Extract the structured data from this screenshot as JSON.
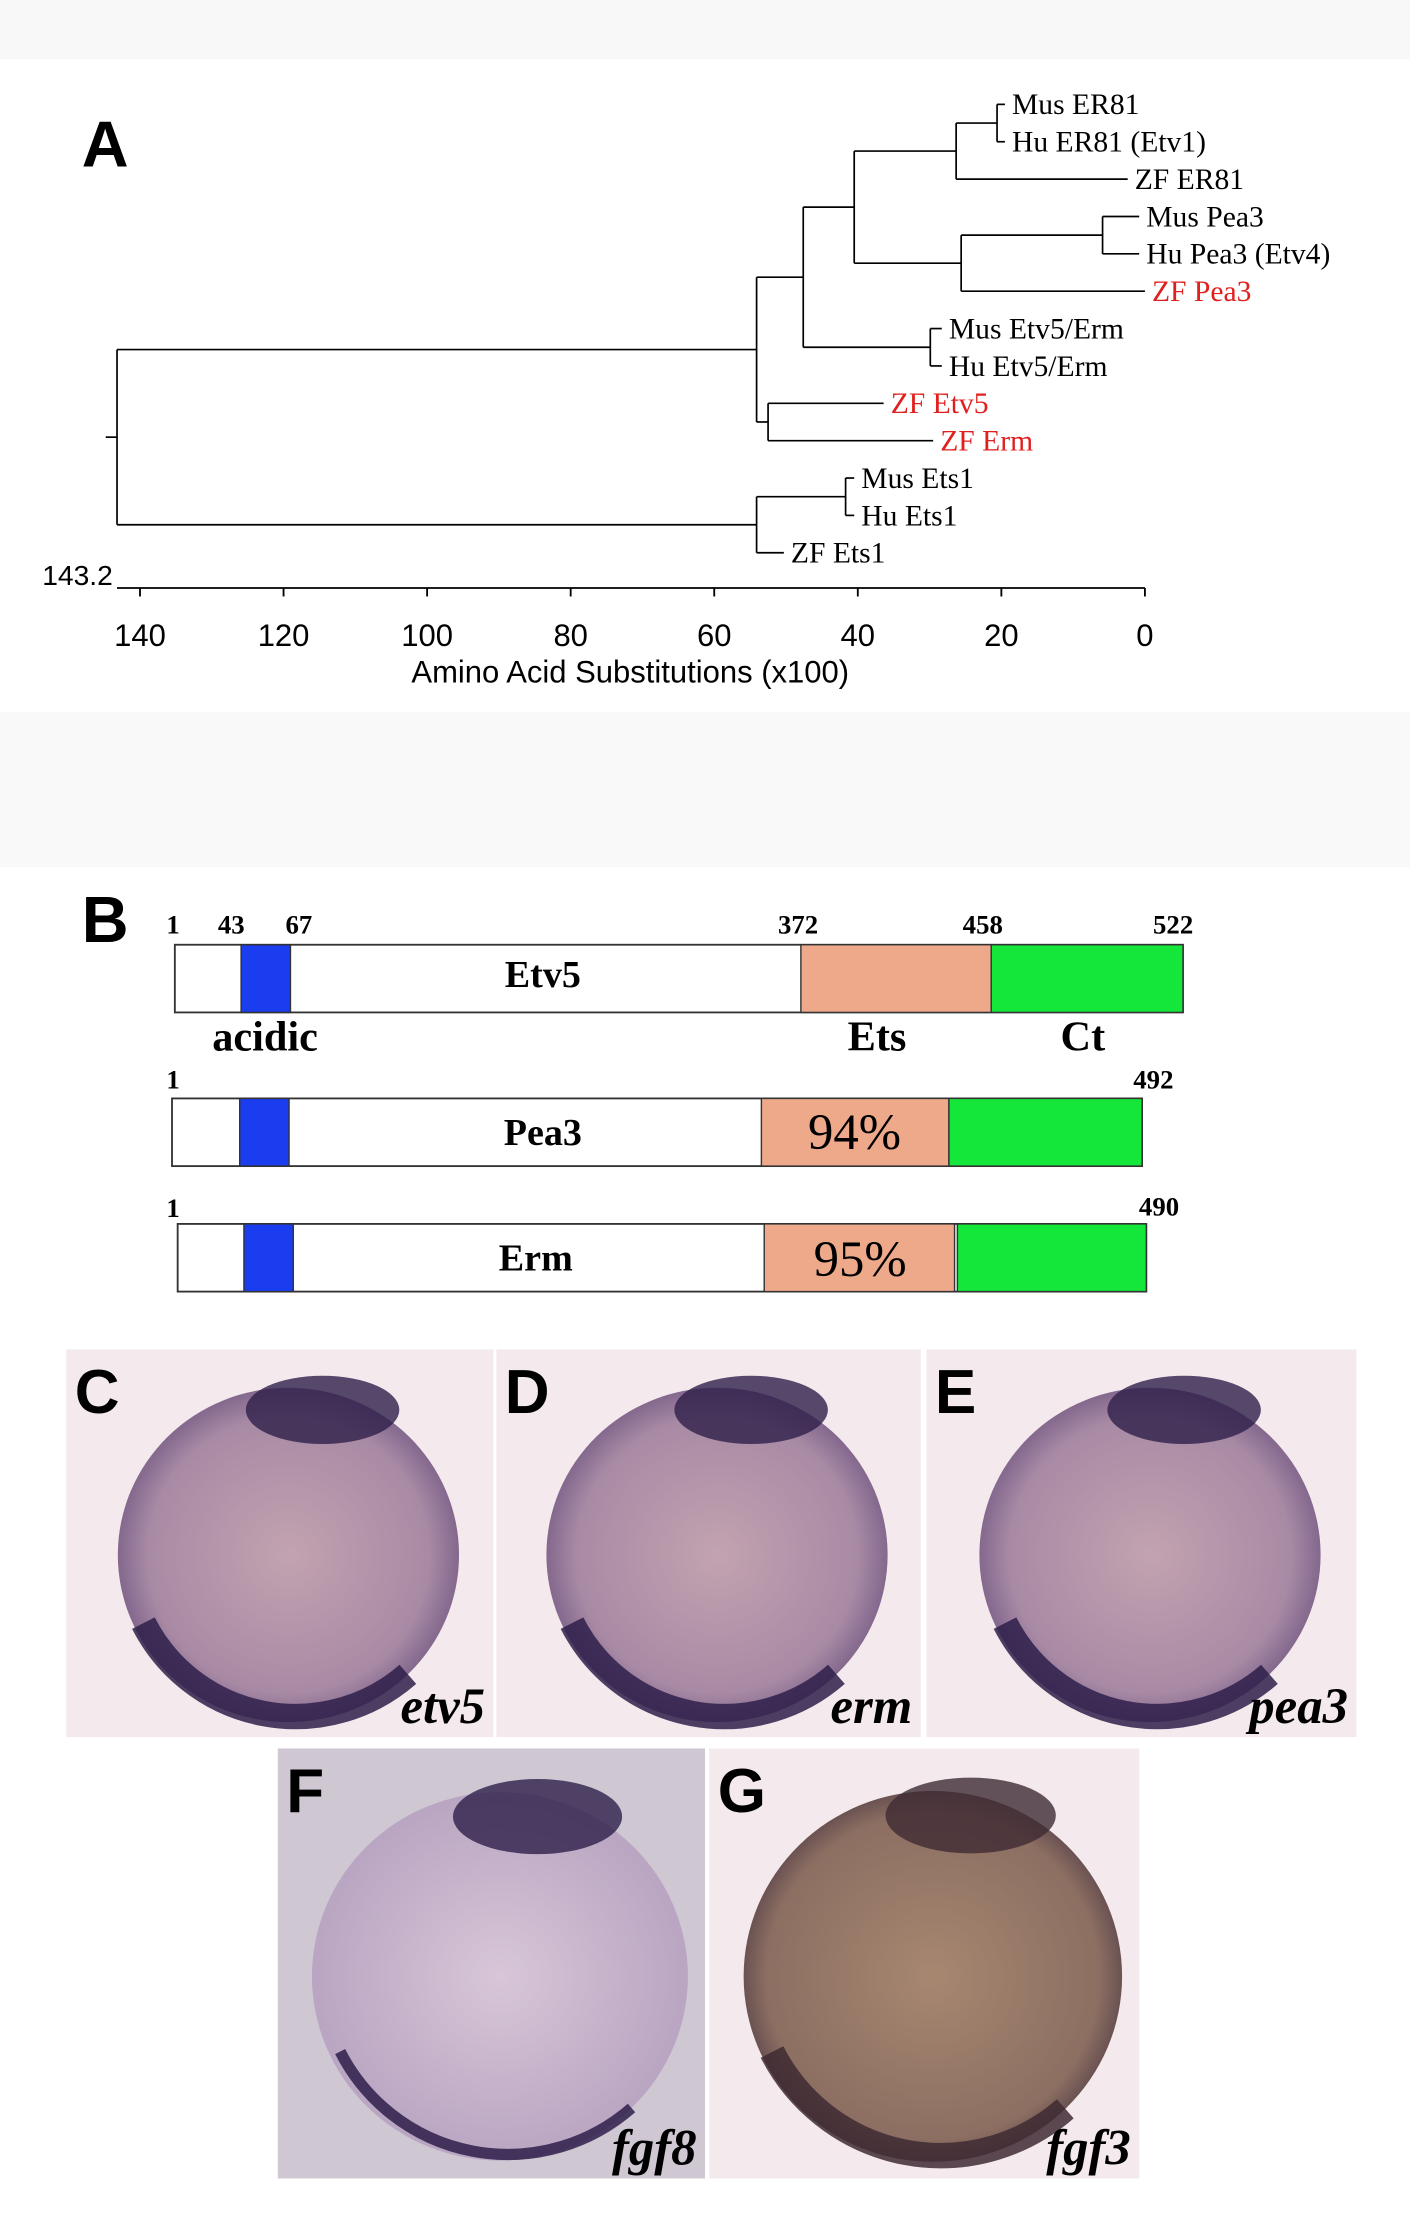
{
  "panel_a": {
    "label": "A",
    "axis_label": "Amino Acid Substitutions (x100)",
    "xlim": [
      143.2,
      0
    ],
    "xticks": [
      140,
      120,
      100,
      80,
      60,
      40,
      20,
      0
    ],
    "tree": {
      "depth": 143.2,
      "children": [
        {
          "depth": 54.1,
          "children": [
            {
              "depth": 47.6,
              "children": [
                {
                  "depth": 40.5,
                  "children": [
                    {
                      "depth": 26.3,
                      "children": [
                        {
                          "depth": 20.6,
                          "children": [
                            {
                              "name": "Mus ER81",
                              "color": "#000000",
                              "depth": 19.5
                            },
                            {
                              "name": "Hu ER81 (Etv1)",
                              "color": "#000000",
                              "depth": 19.5
                            }
                          ]
                        },
                        {
                          "name": "ZF ER81",
                          "color": "#000000",
                          "depth": 2.4
                        }
                      ]
                    },
                    {
                      "depth": 25.6,
                      "children": [
                        {
                          "depth": 5.9,
                          "children": [
                            {
                              "name": "Mus Pea3",
                              "color": "#000000",
                              "depth": 0.8
                            },
                            {
                              "name": "Hu Pea3 (Etv4)",
                              "color": "#000000",
                              "depth": 0.8
                            }
                          ]
                        },
                        {
                          "name": "ZF Pea3",
                          "color": "#e0201e",
                          "depth": 0
                        }
                      ]
                    }
                  ]
                },
                {
                  "depth": 29.9,
                  "children": [
                    {
                      "name": "Mus Etv5/Erm",
                      "color": "#000000",
                      "depth": 28.3
                    },
                    {
                      "name": "Hu Etv5/Erm",
                      "color": "#000000",
                      "depth": 28.3
                    }
                  ]
                }
              ]
            },
            {
              "depth": 52.5,
              "children": [
                {
                  "name": "ZF Etv5",
                  "color": "#e0201e",
                  "depth": 36.4
                },
                {
                  "name": "ZF Erm",
                  "color": "#e0201e",
                  "depth": 29.5
                }
              ]
            }
          ]
        },
        {
          "depth": 54.1,
          "children": [
            {
              "depth": 41.7,
              "children": [
                {
                  "name": "Mus Ets1",
                  "color": "#000000",
                  "depth": 40.5
                },
                {
                  "name": "Hu Ets1",
                  "color": "#000000",
                  "depth": 40.5
                }
              ]
            },
            {
              "name": "ZF Ets1",
              "color": "#000000",
              "depth": 50.3
            }
          ]
        }
      ]
    }
  },
  "panel_b": {
    "label": "B",
    "domains": [
      "acidic",
      "Ets",
      "Ct"
    ],
    "proteins": [
      {
        "name": "Etv5",
        "positions": [
          1,
          43,
          67,
          372,
          458,
          522
        ]
      },
      {
        "name": "Pea3",
        "positions": [
          1,
          492
        ],
        "identity": "94%"
      },
      {
        "name": "Erm",
        "positions": [
          1,
          490
        ],
        "identity": "95%"
      }
    ]
  },
  "images": [
    {
      "label": "C",
      "gene": "etv5"
    },
    {
      "label": "D",
      "gene": "erm"
    },
    {
      "label": "E",
      "gene": "pea3"
    },
    {
      "label": "F",
      "gene": "fgf8"
    },
    {
      "label": "G",
      "gene": "fgf3"
    }
  ]
}
